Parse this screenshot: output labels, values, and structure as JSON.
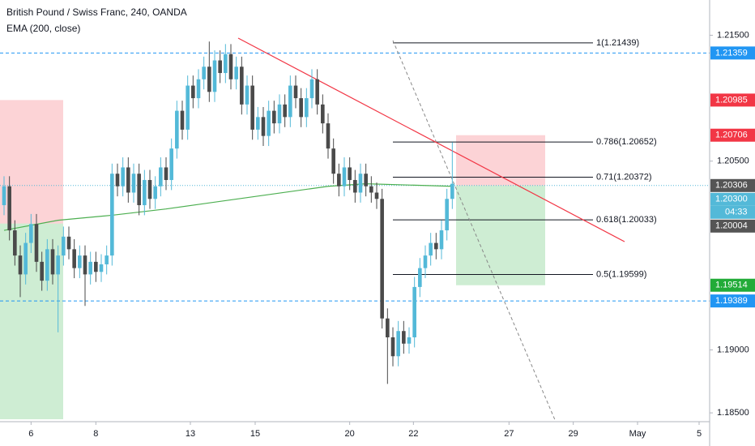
{
  "chart_data": {
    "type": "candlestick",
    "title": "British Pound / Swiss Franc, 240, OANDA",
    "up_color": "#53b9d8",
    "down_color": "#4a4a4a",
    "x": [
      0,
      1,
      2,
      3,
      4,
      5,
      6,
      7,
      8,
      9,
      10,
      11,
      12,
      13,
      14,
      15,
      16,
      17,
      18,
      19,
      20,
      21,
      22,
      23,
      24,
      25,
      26,
      27,
      28,
      29,
      30,
      31,
      32,
      33,
      34,
      35,
      36,
      37,
      38,
      39,
      40,
      41,
      42,
      43,
      44,
      45,
      46,
      47,
      48,
      49,
      50,
      51,
      52,
      53,
      54,
      55,
      56,
      57,
      58,
      59,
      60,
      61,
      62,
      63,
      64,
      65,
      66,
      67,
      68,
      69,
      70,
      71,
      72,
      73,
      74,
      75,
      76,
      77,
      78,
      79,
      80,
      81,
      82,
      83
    ],
    "open": [
      1.2015,
      1.203,
      1.1995,
      1.1975,
      1.196,
      1.1985,
      1.2,
      1.197,
      1.1955,
      1.198,
      1.196,
      1.1975,
      1.199,
      1.198,
      1.1965,
      1.1975,
      1.196,
      1.197,
      1.1962,
      1.1968,
      1.1975,
      1.204,
      1.203,
      1.2045,
      1.2025,
      1.204,
      1.2015,
      1.2035,
      1.202,
      1.203,
      1.2045,
      1.2035,
      1.206,
      1.209,
      1.2075,
      1.211,
      1.21,
      1.2115,
      1.2125,
      1.2105,
      1.213,
      1.212,
      1.2135,
      1.2115,
      1.2125,
      1.2095,
      1.211,
      1.2075,
      1.2085,
      1.207,
      1.209,
      1.208,
      1.2095,
      1.2085,
      1.211,
      1.21,
      1.2085,
      1.21,
      1.2115,
      1.2095,
      1.208,
      1.206,
      1.204,
      1.203,
      1.2045,
      1.2035,
      1.2025,
      1.204,
      1.203,
      1.2025,
      1.202,
      1.1925,
      1.191,
      1.1895,
      1.1915,
      1.1905,
      1.191,
      1.195,
      1.1965,
      1.1975,
      1.1985,
      1.198,
      1.1995,
      1.202
    ],
    "high": [
      1.2038,
      1.2038,
      1.2003,
      1.1983,
      1.1993,
      1.2008,
      1.2008,
      1.1978,
      1.1988,
      1.1988,
      1.1983,
      1.1998,
      1.1998,
      1.1988,
      1.1983,
      1.1983,
      1.1978,
      1.1978,
      1.1976,
      1.1983,
      1.2048,
      1.2048,
      1.2053,
      1.2053,
      1.2048,
      1.2048,
      1.2043,
      1.2043,
      1.2038,
      1.2053,
      1.2053,
      1.2068,
      1.2098,
      1.2098,
      1.2118,
      1.2118,
      1.2123,
      1.2133,
      1.2145,
      1.2138,
      1.2138,
      1.2143,
      1.2143,
      1.2133,
      1.2133,
      1.2118,
      1.2118,
      1.2093,
      1.2093,
      1.2098,
      1.2098,
      1.2103,
      1.2103,
      1.2118,
      1.2118,
      1.2108,
      1.2108,
      1.2123,
      1.2123,
      1.2103,
      1.2088,
      1.2068,
      1.2048,
      1.2053,
      1.2053,
      1.2043,
      1.2048,
      1.2048,
      1.2038,
      1.2033,
      1.2028,
      1.1933,
      1.1918,
      1.1923,
      1.1923,
      1.1918,
      1.1958,
      1.1973,
      1.1983,
      1.1993,
      1.1993,
      1.2003,
      1.2028,
      1.2065
    ],
    "low": [
      1.2007,
      1.1987,
      1.1967,
      1.1942,
      1.1952,
      1.1977,
      1.1962,
      1.1947,
      1.1947,
      1.1952,
      1.1914,
      1.1967,
      1.1972,
      1.1957,
      1.1957,
      1.1935,
      1.1952,
      1.1954,
      1.1954,
      1.196,
      1.1967,
      1.2022,
      1.2022,
      1.2017,
      1.2017,
      1.2007,
      1.2007,
      1.2012,
      1.2012,
      1.2022,
      1.2027,
      1.2027,
      1.2052,
      1.2067,
      1.2067,
      1.2092,
      1.2092,
      1.2107,
      1.2097,
      1.2097,
      1.2112,
      1.2112,
      1.2107,
      1.2107,
      1.2087,
      1.2087,
      1.2067,
      1.2067,
      1.2062,
      1.2062,
      1.2072,
      1.2072,
      1.2077,
      1.2077,
      1.2092,
      1.2077,
      1.2077,
      1.2092,
      1.2087,
      1.2072,
      1.2052,
      1.2032,
      1.2022,
      1.2022,
      1.2027,
      1.2017,
      1.2017,
      1.2022,
      1.2017,
      1.2012,
      1.1917,
      1.1873,
      1.1887,
      1.1887,
      1.1897,
      1.1897,
      1.1902,
      1.1942,
      1.1957,
      1.1967,
      1.1972,
      1.1972,
      1.1987,
      1.2012
    ],
    "close": [
      1.203,
      1.1995,
      1.1975,
      1.196,
      1.1985,
      1.2,
      1.197,
      1.1955,
      1.198,
      1.196,
      1.1975,
      1.199,
      1.198,
      1.1965,
      1.1975,
      1.196,
      1.197,
      1.1962,
      1.1968,
      1.1975,
      1.204,
      1.203,
      1.2045,
      1.2025,
      1.204,
      1.2015,
      1.2035,
      1.202,
      1.203,
      1.2045,
      1.2035,
      1.206,
      1.209,
      1.2075,
      1.211,
      1.21,
      1.2115,
      1.2125,
      1.2105,
      1.213,
      1.212,
      1.2135,
      1.2115,
      1.2125,
      1.2095,
      1.211,
      1.2075,
      1.2085,
      1.207,
      1.209,
      1.208,
      1.2095,
      1.2085,
      1.211,
      1.21,
      1.2085,
      1.21,
      1.2115,
      1.2095,
      1.208,
      1.206,
      1.204,
      1.203,
      1.2045,
      1.2035,
      1.2025,
      1.204,
      1.203,
      1.2025,
      1.202,
      1.1925,
      1.191,
      1.1895,
      1.1915,
      1.1905,
      1.191,
      1.195,
      1.1965,
      1.1975,
      1.1985,
      1.198,
      1.1995,
      1.202,
      1.2032
    ],
    "ema": {
      "name": "EMA (200, close)",
      "color": "#4caf50",
      "x": [
        0,
        10,
        20,
        30,
        45,
        60,
        67,
        75,
        83
      ],
      "values": [
        1.1995,
        1.2003,
        1.2007,
        1.2012,
        1.2021,
        1.203,
        1.2032,
        1.2031,
        1.203
      ]
    },
    "xlim": [
      -0.75,
      130.5
    ],
    "xticks": [
      {
        "value": 5,
        "label": "6"
      },
      {
        "value": 17,
        "label": "8"
      },
      {
        "value": 34.5,
        "label": "13"
      },
      {
        "value": 46.5,
        "label": "15"
      },
      {
        "value": 64,
        "label": "20"
      },
      {
        "value": 75.8,
        "label": "22"
      },
      {
        "value": 93.5,
        "label": "27"
      },
      {
        "value": 105.4,
        "label": "29"
      },
      {
        "value": 117.3,
        "label": "May"
      },
      {
        "value": 128.7,
        "label": "5"
      }
    ],
    "ylim": [
      1.1843,
      1.2178
    ],
    "yticks": [
      {
        "value": 1.215,
        "label": "1.21500"
      },
      {
        "value": 1.205,
        "label": "1.20500"
      },
      {
        "value": 1.19,
        "label": "1.19000"
      },
      {
        "value": 1.185,
        "label": "1.18500"
      }
    ],
    "fib": [
      {
        "label": "1(1.21439)",
        "value": 1.21439
      },
      {
        "label": "0.786(1.20652)",
        "value": 1.20652
      },
      {
        "label": "0.71(1.20372)",
        "value": 1.20372
      },
      {
        "label": "0.618(1.20033)",
        "value": 1.20033
      },
      {
        "label": "0.5(1.19599)",
        "value": 1.19599
      }
    ],
    "price_tags": [
      {
        "value": 1.21359,
        "label": "1.21359",
        "color": "#2196f3"
      },
      {
        "value": 1.20985,
        "label": "1.20985",
        "color": "#f23645"
      },
      {
        "value": 1.20706,
        "label": "1.20706",
        "color": "#f23645"
      },
      {
        "value": 1.20306,
        "label": "1.20306",
        "color": "#555555"
      },
      {
        "value": 1.203,
        "label": "1.20300",
        "color": "#53b9d8"
      },
      {
        "value": 1.20004,
        "label": "1.20004",
        "color": "#555555"
      },
      {
        "value": 1.19514,
        "label": "1.19514",
        "color": "#22ab38"
      },
      {
        "value": 1.19389,
        "label": "1.19389",
        "color": "#2196f3"
      }
    ],
    "countdown": "04:33"
  }
}
